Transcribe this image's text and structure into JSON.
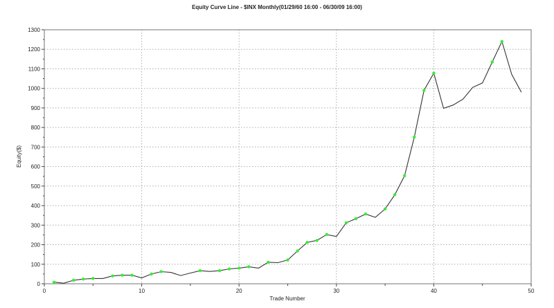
{
  "chart_data": {
    "type": "line",
    "title": "Equity Curve Line - $INX Monthly(01/29/60 16:00 - 06/30/09 16:00)",
    "xlabel": "Trade Number",
    "ylabel": "Equity($)",
    "xlim": [
      0,
      50
    ],
    "ylim": [
      0,
      1300
    ],
    "xticks": [
      0,
      10,
      20,
      30,
      40,
      50
    ],
    "yticks": [
      0,
      100,
      200,
      300,
      400,
      500,
      600,
      700,
      800,
      900,
      1000,
      1100,
      1200,
      1300
    ],
    "grid": true,
    "line_color": "#333333",
    "marker_color": "#33ee33",
    "x": [
      1,
      2,
      3,
      4,
      5,
      6,
      7,
      8,
      9,
      10,
      11,
      12,
      13,
      14,
      15,
      16,
      17,
      18,
      19,
      20,
      21,
      22,
      23,
      24,
      25,
      26,
      27,
      28,
      29,
      30,
      31,
      32,
      33,
      34,
      35,
      36,
      37,
      38,
      39,
      40,
      41,
      42,
      43,
      44,
      45,
      46,
      47,
      48,
      49
    ],
    "y": [
      8,
      3,
      18,
      24,
      27,
      27,
      40,
      44,
      44,
      30,
      50,
      62,
      58,
      42,
      55,
      67,
      63,
      67,
      76,
      80,
      87,
      80,
      110,
      108,
      122,
      168,
      212,
      222,
      252,
      242,
      312,
      333,
      357,
      340,
      383,
      456,
      553,
      751,
      990,
      1078,
      898,
      915,
      945,
      1005,
      1028,
      1135,
      1240,
      1072,
      980
    ],
    "markers": [
      1,
      0,
      1,
      1,
      1,
      0,
      1,
      1,
      1,
      0,
      1,
      1,
      0,
      0,
      0,
      1,
      0,
      1,
      1,
      1,
      1,
      0,
      1,
      0,
      1,
      1,
      1,
      1,
      1,
      0,
      1,
      1,
      1,
      0,
      1,
      1,
      1,
      1,
      1,
      1,
      0,
      0,
      0,
      0,
      0,
      1,
      1,
      0,
      0
    ]
  }
}
